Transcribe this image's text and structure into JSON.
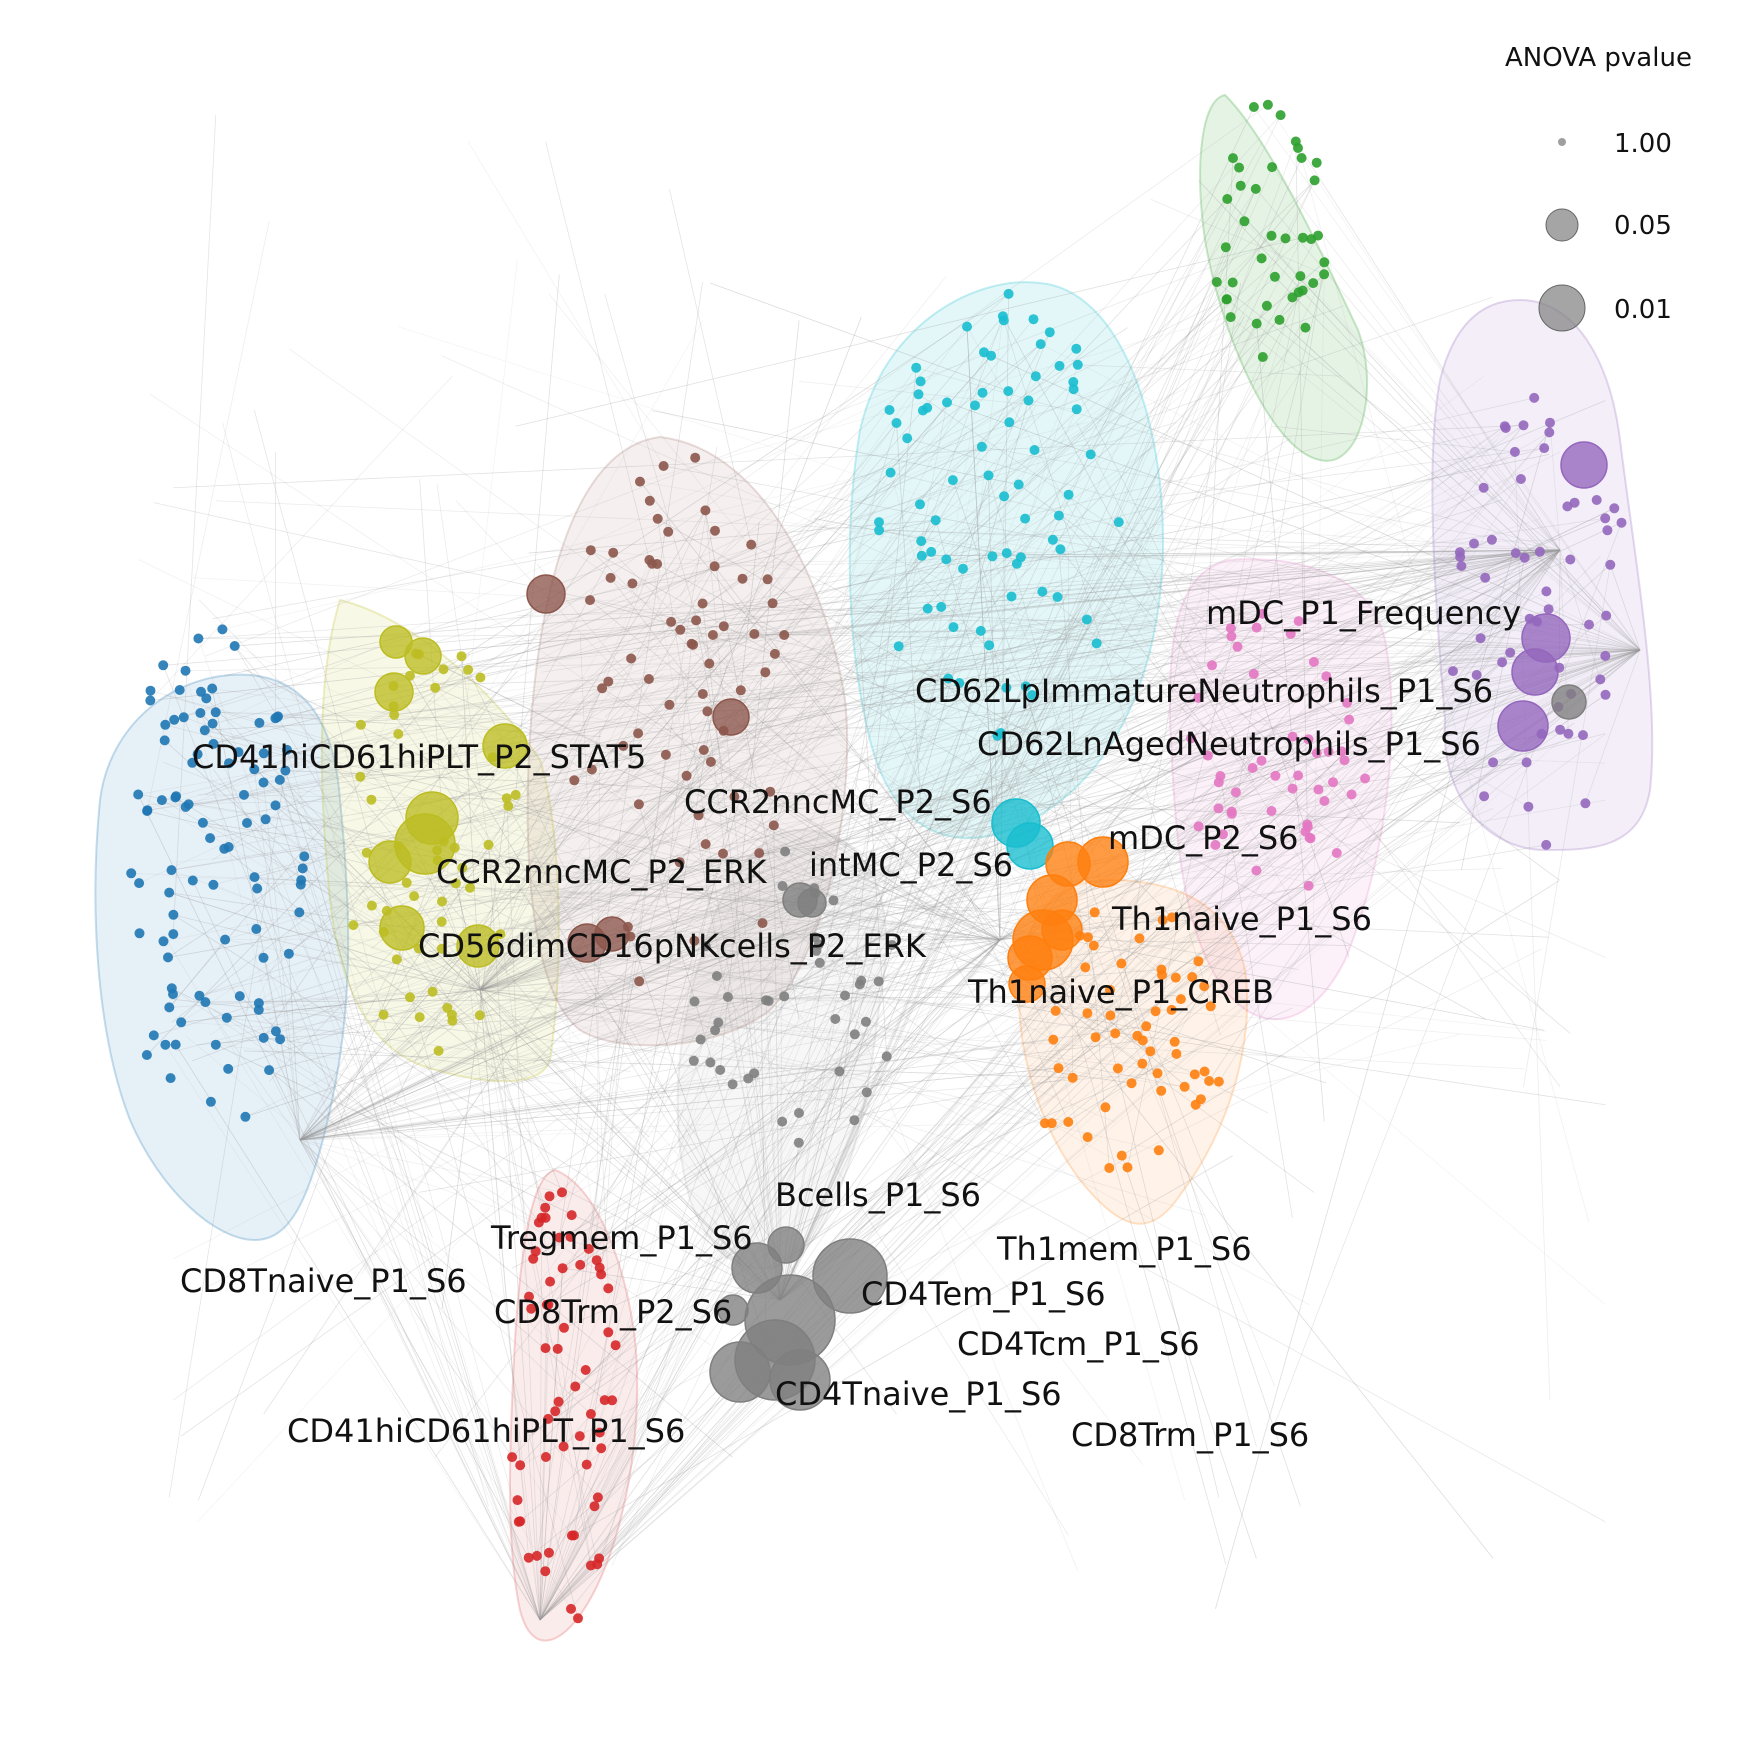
{
  "colors": {
    "blue": "#1f77b4",
    "olive": "#bcbd22",
    "brown": "#8c564b",
    "cyan": "#17becf",
    "green": "#2ca02c",
    "purple": "#9467bd",
    "pink": "#e377c2",
    "orange": "#ff7f0e",
    "gray": "#7f7f7f",
    "red": "#d62728",
    "edge": "#9a9a9a"
  },
  "legend": {
    "title": "ANOVA pvalue",
    "entries": [
      {
        "pvalue": 1.0,
        "label": "1.00"
      },
      {
        "pvalue": 0.05,
        "label": "0.05"
      },
      {
        "pvalue": 0.01,
        "label": "0.01"
      }
    ]
  },
  "labels": [
    {
      "id": "mdc-p1-frequency",
      "text": "mDC_P1_Frequency"
    },
    {
      "id": "cd62lp-immature-neutrophils",
      "text": "CD62LpImmatureNeutrophils_P1_S6"
    },
    {
      "id": "cd62ln-aged-neutrophils",
      "text": "CD62LnAgedNeutrophils_P1_S6"
    },
    {
      "id": "cd41hi-plt-p2-stat5",
      "text": "CD41hiCD61hiPLT_P2_STAT5"
    },
    {
      "id": "ccr2nncmc-p2-s6",
      "text": "CCR2nncMC_P2_S6"
    },
    {
      "id": "mdc-p2-s6",
      "text": "mDC_P2_S6"
    },
    {
      "id": "intmc-p2-s6",
      "text": "intMC_P2_S6"
    },
    {
      "id": "ccr2nncmc-p2-erk",
      "text": "CCR2nncMC_P2_ERK"
    },
    {
      "id": "th1naive-p1-s6",
      "text": "Th1naive_P1_S6"
    },
    {
      "id": "cd56dim-nk-p2-erk",
      "text": "CD56dimCD16pNKcells_P2_ERK"
    },
    {
      "id": "th1naive-p1-creb",
      "text": "Th1naive_P1_CREB"
    },
    {
      "id": "bcells-p1-s6",
      "text": "Bcells_P1_S6"
    },
    {
      "id": "tregmem-p1-s6",
      "text": "Tregmem_P1_S6"
    },
    {
      "id": "th1mem-p1-s6",
      "text": "Th1mem_P1_S6"
    },
    {
      "id": "cd8tnaive-p1-s6",
      "text": "CD8Tnaive_P1_S6"
    },
    {
      "id": "cd4tem-p1-s6",
      "text": "CD4Tem_P1_S6"
    },
    {
      "id": "cd8trm-p2-s6",
      "text": "CD8Trm_P2_S6"
    },
    {
      "id": "cd4tcm-p1-s6",
      "text": "CD4Tcm_P1_S6"
    },
    {
      "id": "cd4tnaive-p1-s6",
      "text": "CD4Tnaive_P1_S6"
    },
    {
      "id": "cd41hi-plt-p1-s6",
      "text": "CD41hiCD61hiPLT_P1_S6"
    },
    {
      "id": "cd8trm-p1-s6",
      "text": "CD8Trm_P1_S6"
    }
  ]
}
